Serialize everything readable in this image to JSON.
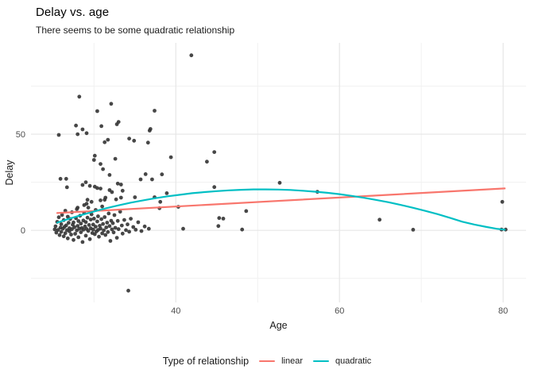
{
  "title": "Delay vs. age",
  "subtitle": "There seems to be some quadratic relationship",
  "legend": {
    "title": "Type of relationship",
    "items": [
      {
        "label": "linear",
        "color": "#F8766D"
      },
      {
        "label": "quadratic",
        "color": "#00BFC4"
      }
    ]
  },
  "chart_data": {
    "type": "scatter",
    "title": "Delay vs. age",
    "subtitle": "There seems to be some quadratic relationship",
    "xlabel": "Age",
    "ylabel": "Delay",
    "x_domain": [
      22.3,
      82.8
    ],
    "y_domain": [
      -37.5,
      97.5
    ],
    "x_ticks": [
      40,
      60,
      80
    ],
    "x_minor_ticks": [
      30,
      50,
      70
    ],
    "y_ticks": [
      0,
      50
    ],
    "y_minor_ticks": [
      -25,
      25,
      75
    ],
    "grid": "on",
    "legend_position": "bottom",
    "legend_title": "Type of relationship",
    "point_color": "#333333",
    "grid_major_color": "#e6e6e6",
    "grid_minor_color": "#f1f1f1",
    "tick_label_color": "#4d4d4d",
    "series": [
      {
        "name": "points",
        "type": "scatter",
        "color": "#333333",
        "points": [
          [
            41.9,
            91
          ],
          [
            28.2,
            69.5
          ],
          [
            32.1,
            65.8
          ],
          [
            30.4,
            62
          ],
          [
            37.4,
            62.2
          ],
          [
            27.8,
            54.5
          ],
          [
            28.6,
            52.5
          ],
          [
            30.9,
            54.2
          ],
          [
            32.8,
            55.2
          ],
          [
            33.0,
            56.4
          ],
          [
            36.9,
            52.7
          ],
          [
            25.7,
            49.6
          ],
          [
            28.0,
            50
          ],
          [
            29.1,
            50.5
          ],
          [
            36.8,
            51.9
          ],
          [
            31.3,
            45.8
          ],
          [
            31.7,
            47.1
          ],
          [
            34.3,
            47.7
          ],
          [
            34.9,
            46.6
          ],
          [
            36.6,
            45.6
          ],
          [
            44.7,
            40.7
          ],
          [
            39.4,
            38
          ],
          [
            30.1,
            38.8
          ],
          [
            43.8,
            35.7
          ],
          [
            30,
            36.6
          ],
          [
            30.8,
            34.5
          ],
          [
            31.1,
            31.8
          ],
          [
            31.9,
            28.8
          ],
          [
            32.6,
            37.2
          ],
          [
            25.9,
            26.8
          ],
          [
            26.6,
            26.8
          ],
          [
            26.7,
            22.4
          ],
          [
            28.6,
            23.6
          ],
          [
            29,
            25
          ],
          [
            29.5,
            23.1
          ],
          [
            30.1,
            22.7
          ],
          [
            30.4,
            22
          ],
          [
            30.8,
            21.7
          ],
          [
            31.9,
            20.9
          ],
          [
            32.2,
            19.9
          ],
          [
            32.9,
            24.3
          ],
          [
            33.3,
            23.8
          ],
          [
            33.5,
            20.6
          ],
          [
            36.3,
            29.2
          ],
          [
            35.7,
            26.5
          ],
          [
            37.1,
            26.5
          ],
          [
            38.3,
            29.1
          ],
          [
            38.9,
            19.3
          ],
          [
            44.7,
            22.5
          ],
          [
            52.7,
            24.7
          ],
          [
            57.3,
            20
          ],
          [
            35,
            17.2
          ],
          [
            37.4,
            17.2
          ],
          [
            38.1,
            14.8
          ],
          [
            38,
            11.5
          ],
          [
            40.3,
            12.2
          ],
          [
            29.2,
            15.9
          ],
          [
            29.7,
            14.8
          ],
          [
            30.8,
            15.6
          ],
          [
            31.3,
            15.9
          ],
          [
            31.4,
            17
          ],
          [
            32.7,
            16.1
          ],
          [
            33.3,
            17
          ],
          [
            28.8,
            13.1
          ],
          [
            29.1,
            13.8
          ],
          [
            28,
            11.8
          ],
          [
            40.9,
            0.8
          ],
          [
            45.2,
            2.2
          ],
          [
            45.3,
            6.4
          ],
          [
            45.8,
            6.1
          ],
          [
            48.1,
            0.4
          ],
          [
            48.6,
            10
          ],
          [
            64.9,
            5.5
          ],
          [
            69,
            0.3
          ],
          [
            79.9,
            14.8
          ],
          [
            79.8,
            0.4
          ],
          [
            80.3,
            0.4
          ],
          [
            34.2,
            -31.4
          ],
          [
            25.2,
            0.5
          ],
          [
            25.3,
            2.1
          ],
          [
            25.4,
            -1.2
          ],
          [
            25.5,
            4.4
          ],
          [
            25.6,
            0.2
          ],
          [
            25.7,
            6.8
          ],
          [
            25.8,
            -2.5
          ],
          [
            25.9,
            1.4
          ],
          [
            26.0,
            3.2
          ],
          [
            26.0,
            -0.8
          ],
          [
            26.1,
            8.0
          ],
          [
            26.2,
            0.9
          ],
          [
            26.3,
            -3.1
          ],
          [
            26.3,
            5.3
          ],
          [
            26.4,
            1.8
          ],
          [
            26.5,
            -1.5
          ],
          [
            26.5,
            10.2
          ],
          [
            26.6,
            2.6
          ],
          [
            26.7,
            0.1
          ],
          [
            26.8,
            7.1
          ],
          [
            26.8,
            -4.2
          ],
          [
            26.9,
            3.9
          ],
          [
            27.0,
            1.1
          ],
          [
            27.0,
            -0.5
          ],
          [
            27.1,
            5.9
          ],
          [
            27.2,
            -2.2
          ],
          [
            27.3,
            9.4
          ],
          [
            27.3,
            0.6
          ],
          [
            27.4,
            2.9
          ],
          [
            27.5,
            -5.0
          ],
          [
            27.5,
            4.1
          ],
          [
            27.6,
            1.6
          ],
          [
            27.7,
            -1.8
          ],
          [
            27.8,
            6.3
          ],
          [
            27.9,
            0.0
          ],
          [
            27.9,
            11.0
          ],
          [
            28.0,
            2.3
          ],
          [
            28.1,
            -3.6
          ],
          [
            28.1,
            4.8
          ],
          [
            28.2,
            0.8
          ],
          [
            28.3,
            7.6
          ],
          [
            28.4,
            -1.0
          ],
          [
            28.4,
            3.5
          ],
          [
            28.5,
            1.2
          ],
          [
            28.6,
            -6.1
          ],
          [
            28.7,
            5.1
          ],
          [
            28.7,
            0.3
          ],
          [
            28.8,
            9.0
          ],
          [
            28.9,
            2.0
          ],
          [
            29.0,
            -2.8
          ],
          [
            29.0,
            4.3
          ],
          [
            29.1,
            0.7
          ],
          [
            29.2,
            6.6
          ],
          [
            29.3,
            -0.3
          ],
          [
            29.3,
            11.8
          ],
          [
            29.4,
            2.8
          ],
          [
            29.5,
            -4.6
          ],
          [
            29.6,
            5.6
          ],
          [
            29.6,
            1.0
          ],
          [
            29.7,
            8.3
          ],
          [
            29.8,
            -1.4
          ],
          [
            29.9,
            3.0
          ],
          [
            29.9,
            0.4
          ],
          [
            30.0,
            6.1
          ],
          [
            30.1,
            -2.0
          ],
          [
            30.2,
            10.6
          ],
          [
            30.2,
            1.9
          ],
          [
            30.3,
            -0.6
          ],
          [
            30.4,
            4.6
          ],
          [
            30.5,
            0.2
          ],
          [
            30.5,
            7.3
          ],
          [
            30.6,
            -3.3
          ],
          [
            30.7,
            2.4
          ],
          [
            30.8,
            0.9
          ],
          [
            30.9,
            5.8
          ],
          [
            31.0,
            -1.6
          ],
          [
            31.0,
            12.4
          ],
          [
            31.1,
            3.3
          ],
          [
            31.2,
            0.0
          ],
          [
            31.3,
            6.9
          ],
          [
            31.4,
            -2.4
          ],
          [
            31.5,
            1.5
          ],
          [
            31.6,
            4.0
          ],
          [
            31.7,
            -0.9
          ],
          [
            31.8,
            8.8
          ],
          [
            31.9,
            2.2
          ],
          [
            32.0,
            -5.5
          ],
          [
            32.1,
            5.0
          ],
          [
            32.2,
            0.5
          ],
          [
            32.3,
            3.7
          ],
          [
            32.4,
            -1.1
          ],
          [
            32.5,
            7.9
          ],
          [
            32.6,
            1.3
          ],
          [
            32.8,
            -3.9
          ],
          [
            32.9,
            4.9
          ],
          [
            33.0,
            0.6
          ],
          [
            33.2,
            9.7
          ],
          [
            33.4,
            2.5
          ],
          [
            33.5,
            -1.7
          ],
          [
            33.7,
            5.4
          ],
          [
            33.9,
            0.1
          ],
          [
            34.1,
            3.1
          ],
          [
            34.3,
            -0.7
          ],
          [
            34.5,
            6.0
          ],
          [
            34.8,
            1.7
          ],
          [
            35.1,
            0.3
          ],
          [
            35.4,
            4.2
          ],
          [
            35.8,
            -0.4
          ],
          [
            36.2,
            2.0
          ],
          [
            36.7,
            0.8
          ]
        ]
      },
      {
        "name": "linear",
        "type": "line",
        "color": "#F8766D",
        "points": [
          [
            25.5,
            9.0
          ],
          [
            80.2,
            21.8
          ]
        ]
      },
      {
        "name": "quadratic",
        "type": "line",
        "color": "#00BFC4",
        "points": [
          [
            25.5,
            4.0
          ],
          [
            27,
            6.1
          ],
          [
            28.5,
            8.0
          ],
          [
            30,
            9.8
          ],
          [
            31.5,
            11.5
          ],
          [
            33,
            13.0
          ],
          [
            34.5,
            14.4
          ],
          [
            36,
            15.6
          ],
          [
            37.5,
            16.7
          ],
          [
            39,
            17.7
          ],
          [
            40.5,
            18.5
          ],
          [
            42,
            19.3
          ],
          [
            43.5,
            19.9
          ],
          [
            45,
            20.4
          ],
          [
            46.5,
            20.8
          ],
          [
            48,
            21.1
          ],
          [
            49.5,
            21.3
          ],
          [
            51,
            21.3
          ],
          [
            52.5,
            21.2
          ],
          [
            54,
            21.0
          ],
          [
            55.5,
            20.6
          ],
          [
            57,
            20.1
          ],
          [
            58.5,
            19.5
          ],
          [
            60,
            18.8
          ],
          [
            61.5,
            17.9
          ],
          [
            63,
            16.9
          ],
          [
            64.5,
            15.8
          ],
          [
            66,
            14.6
          ],
          [
            67.5,
            13.2
          ],
          [
            69,
            11.7
          ],
          [
            70.5,
            10.1
          ],
          [
            72,
            8.4
          ],
          [
            73.5,
            6.5
          ],
          [
            75,
            4.5
          ],
          [
            76.5,
            3.0
          ],
          [
            78,
            1.7
          ],
          [
            79.2,
            0.8
          ],
          [
            80.2,
            0.3
          ]
        ]
      }
    ]
  }
}
